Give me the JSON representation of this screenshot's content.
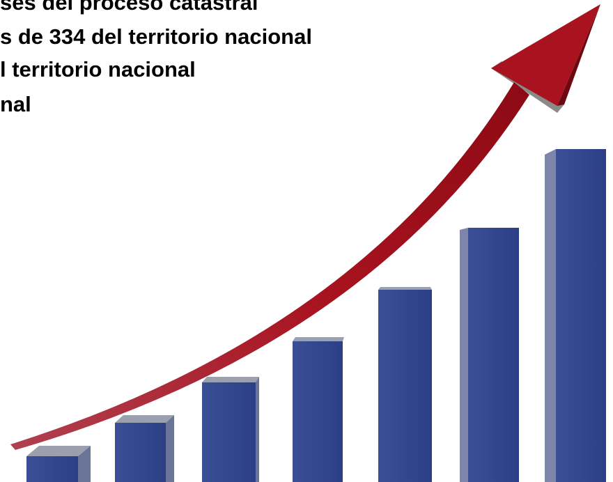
{
  "text_lines": [
    "ses del proceso catastral",
    "s de 334 del territorio nacional",
    "l territorio nacional",
    "nal"
  ]
}
